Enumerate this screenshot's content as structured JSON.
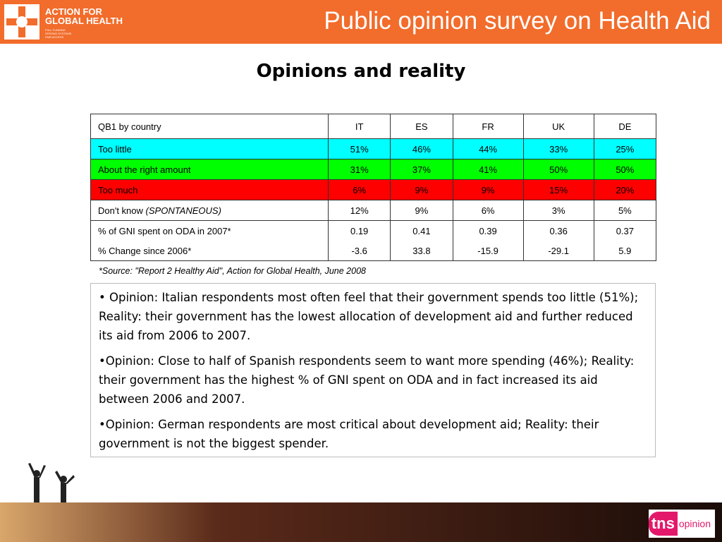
{
  "header": {
    "logo_line1": "ACTION FOR",
    "logo_line2": "GLOBAL HEALTH",
    "logo_tagline": [
      "FULL FUNDING",
      "STRONG SYSTEMS",
      "FAIR ACCESS"
    ],
    "title": "Public opinion survey on Health Aid"
  },
  "subtitle": "Opinions and reality",
  "table": {
    "header": [
      "QB1 by country",
      "IT",
      "ES",
      "FR",
      "UK",
      "DE"
    ],
    "rows": [
      {
        "label": "Too little",
        "color": "#00ffff",
        "cells": [
          "51%",
          "46%",
          "44%",
          "33%",
          "25%"
        ]
      },
      {
        "label": "About the right amount",
        "color": "#00ff00",
        "cells": [
          "31%",
          "37%",
          "41%",
          "50%",
          "50%"
        ]
      },
      {
        "label": "Too much",
        "color": "#ff0000",
        "cells": [
          "6%",
          "9%",
          "9%",
          "15%",
          "20%"
        ]
      },
      {
        "label": "Don't know",
        "note": "(SPONTANEOUS)",
        "cells": [
          "12%",
          "9%",
          "6%",
          "3%",
          "5%"
        ]
      },
      {
        "label": "% of GNI spent on ODA in 2007*",
        "cells": [
          "0.19",
          "0.41",
          "0.39",
          "0.36",
          "0.37"
        ]
      },
      {
        "label": "% Change since 2006*",
        "cells": [
          "-3.6",
          "33.8",
          "-15.9",
          "-29.1",
          "5.9"
        ]
      }
    ]
  },
  "source": "*Source: \"Report 2 Healthy Aid\", Action for Global Health, June 2008",
  "paragraphs": [
    "• Opinion: Italian respondents most often feel that their government spends too little (51%); Reality:  their government has the lowest allocation of development aid and further reduced its aid from 2006 to 2007.",
    "•Opinion: Close to half of Spanish respondents seem to want more spending (46%); Reality: their government has the highest % of GNI spent on ODA and in fact increased its aid between 2006 and 2007.",
    "•Opinion: German respondents are most critical about development aid; Reality: their government is not the biggest spender."
  ],
  "footer": {
    "brand": "tns",
    "brand_suffix": "opinion"
  }
}
